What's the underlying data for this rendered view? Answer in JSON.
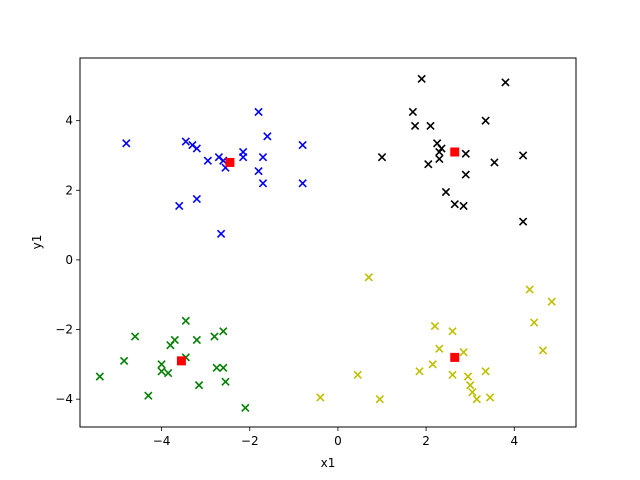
{
  "chart_data": {
    "type": "scatter",
    "title": "",
    "xlabel": "x1",
    "ylabel": "y1",
    "xlim": [
      -5.85,
      5.4
    ],
    "ylim": [
      -4.8,
      5.8
    ],
    "xticks": [
      -4,
      -2,
      0,
      2,
      4
    ],
    "yticks": [
      -4,
      -2,
      0,
      2,
      4
    ],
    "grid": false,
    "legend": "none",
    "series": [
      {
        "color": "#0000ff",
        "marker": "x",
        "points": [
          [
            -4.8,
            3.35
          ],
          [
            -3.45,
            3.4
          ],
          [
            -3.3,
            3.3
          ],
          [
            -3.2,
            3.2
          ],
          [
            -2.95,
            2.85
          ],
          [
            -2.7,
            2.95
          ],
          [
            -2.6,
            2.85
          ],
          [
            -2.55,
            2.65
          ],
          [
            -2.15,
            3.1
          ],
          [
            -2.15,
            2.95
          ],
          [
            -1.8,
            4.25
          ],
          [
            -1.8,
            2.55
          ],
          [
            -1.7,
            2.95
          ],
          [
            -1.7,
            2.2
          ],
          [
            -1.6,
            3.55
          ],
          [
            -0.8,
            3.3
          ],
          [
            -0.8,
            2.2
          ],
          [
            -3.6,
            1.55
          ],
          [
            -3.2,
            1.75
          ],
          [
            -2.65,
            0.75
          ]
        ]
      },
      {
        "color": "#000000",
        "marker": "x",
        "points": [
          [
            1.9,
            5.2
          ],
          [
            3.8,
            5.1
          ],
          [
            1.7,
            4.25
          ],
          [
            1.75,
            3.85
          ],
          [
            2.1,
            3.85
          ],
          [
            3.35,
            4.0
          ],
          [
            2.25,
            3.35
          ],
          [
            2.35,
            3.2
          ],
          [
            2.3,
            3.1
          ],
          [
            2.3,
            2.9
          ],
          [
            2.9,
            3.05
          ],
          [
            2.05,
            2.75
          ],
          [
            1.0,
            2.95
          ],
          [
            3.55,
            2.8
          ],
          [
            4.2,
            3.0
          ],
          [
            2.9,
            2.45
          ],
          [
            2.45,
            1.95
          ],
          [
            2.65,
            1.6
          ],
          [
            2.85,
            1.55
          ],
          [
            4.2,
            1.1
          ]
        ]
      },
      {
        "color": "#008000",
        "marker": "x",
        "points": [
          [
            -4.6,
            -2.2
          ],
          [
            -3.45,
            -1.75
          ],
          [
            -3.7,
            -2.3
          ],
          [
            -3.8,
            -2.45
          ],
          [
            -2.8,
            -2.2
          ],
          [
            -2.6,
            -2.05
          ],
          [
            -3.2,
            -2.3
          ],
          [
            -4.85,
            -2.9
          ],
          [
            -3.45,
            -2.8
          ],
          [
            -4.0,
            -3.0
          ],
          [
            -4.0,
            -3.2
          ],
          [
            -3.85,
            -3.25
          ],
          [
            -2.75,
            -3.1
          ],
          [
            -2.6,
            -3.1
          ],
          [
            -5.4,
            -3.35
          ],
          [
            -3.15,
            -3.6
          ],
          [
            -2.55,
            -3.5
          ],
          [
            -4.3,
            -3.9
          ],
          [
            -2.1,
            -4.25
          ]
        ]
      },
      {
        "color": "#bfbf00",
        "marker": "x",
        "points": [
          [
            0.7,
            -0.5
          ],
          [
            4.35,
            -0.85
          ],
          [
            4.85,
            -1.2
          ],
          [
            4.45,
            -1.8
          ],
          [
            2.2,
            -1.9
          ],
          [
            2.6,
            -2.05
          ],
          [
            2.3,
            -2.55
          ],
          [
            2.85,
            -2.65
          ],
          [
            4.65,
            -2.6
          ],
          [
            2.15,
            -3.0
          ],
          [
            1.85,
            -3.2
          ],
          [
            2.6,
            -3.3
          ],
          [
            3.35,
            -3.2
          ],
          [
            2.95,
            -3.35
          ],
          [
            0.45,
            -3.3
          ],
          [
            3.0,
            -3.6
          ],
          [
            3.05,
            -3.8
          ],
          [
            3.15,
            -4.0
          ],
          [
            3.45,
            -3.95
          ],
          [
            -0.4,
            -3.95
          ],
          [
            0.95,
            -4.0
          ]
        ]
      },
      {
        "color": "#ff0000",
        "marker": "square",
        "points": [
          [
            -2.45,
            2.8
          ],
          [
            2.65,
            3.1
          ],
          [
            -3.55,
            -2.9
          ],
          [
            2.65,
            -2.8
          ]
        ]
      }
    ]
  }
}
